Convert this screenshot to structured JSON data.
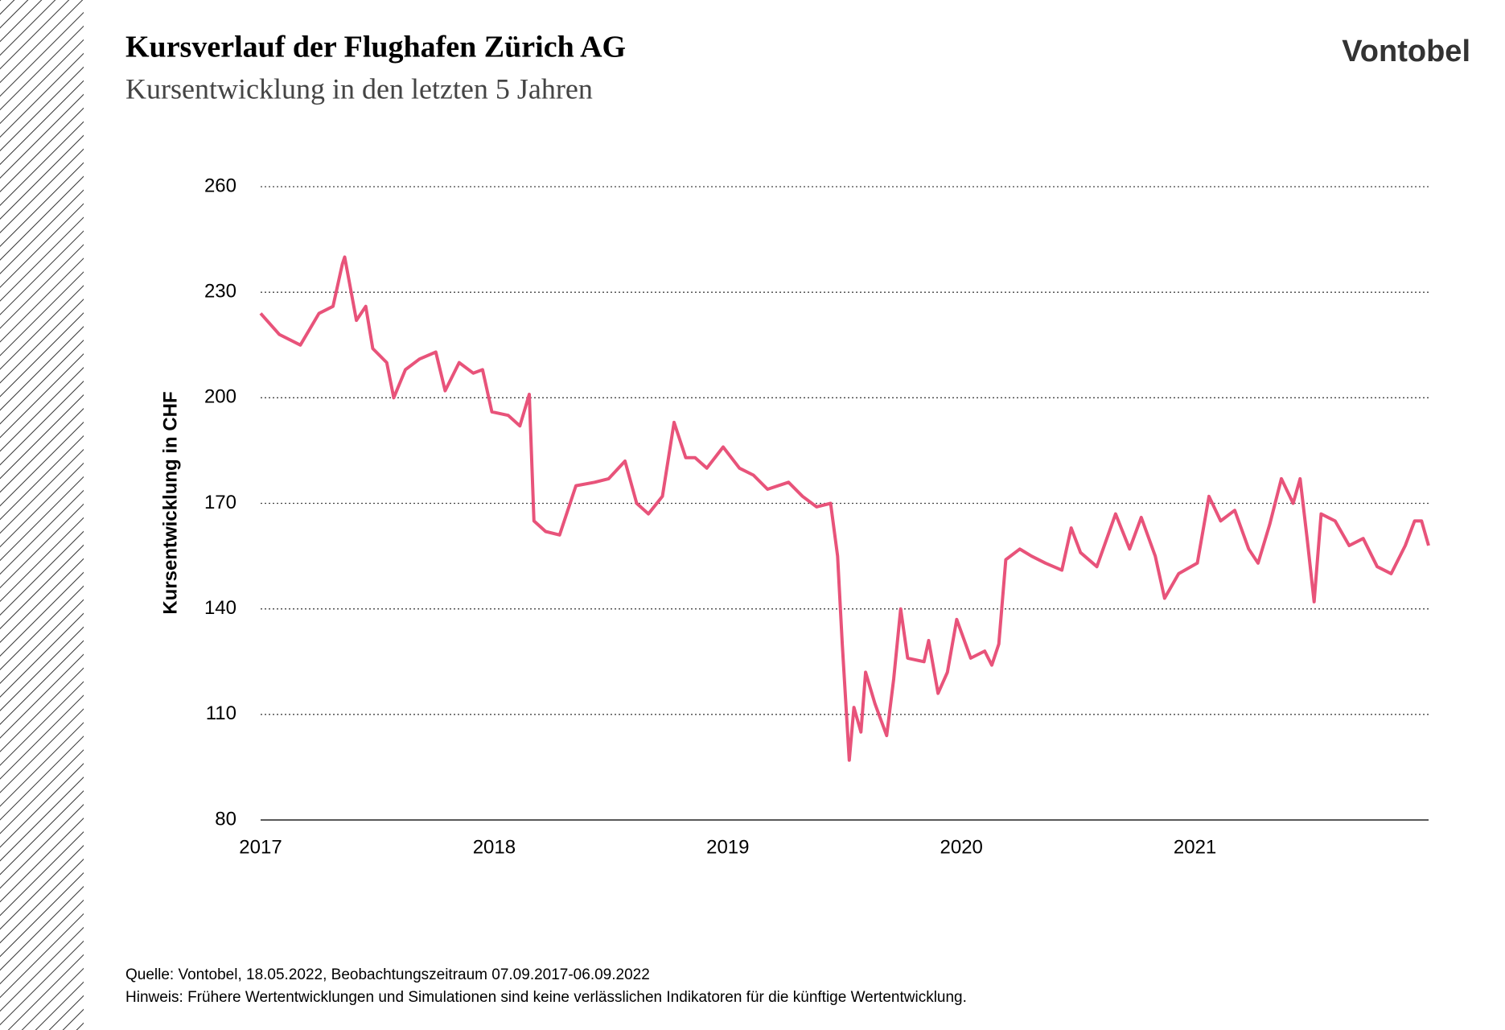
{
  "chart_data": {
    "type": "line",
    "title": "Kursverlauf der Flughafen Zürich AG",
    "subtitle": "Kursentwicklung in den letzten 5 Jahren",
    "brand": "Vontobel",
    "y_label": "Kursentwicklung in CHF",
    "notes": [
      "Quelle: Vontobel, 18.05.2022, Beobachtungszeitraum 07.09.2017-06.09.2022",
      "Hinweis: Frühere Wertentwicklungen und Simulationen sind keine verlässlichen Indikatoren für die künftige Wertentwicklung."
    ],
    "xlim": [
      2017,
      2022
    ],
    "xticks": [
      2017,
      2018,
      2019,
      2020,
      2021
    ],
    "ylim": [
      80,
      260
    ],
    "yticks": [
      80,
      110,
      140,
      170,
      200,
      230,
      260
    ],
    "grid": true,
    "x": [
      2017.0,
      2017.08,
      2017.17,
      2017.25,
      2017.31,
      2017.35,
      2017.36,
      2017.41,
      2017.45,
      2017.48,
      2017.54,
      2017.57,
      2017.62,
      2017.68,
      2017.75,
      2017.79,
      2017.85,
      2017.91,
      2017.95,
      2017.99,
      2018.06,
      2018.11,
      2018.15,
      2018.17,
      2018.22,
      2018.28,
      2018.35,
      2018.43,
      2018.49,
      2018.56,
      2018.61,
      2018.66,
      2018.72,
      2018.77,
      2018.82,
      2018.86,
      2018.91,
      2018.98,
      2019.05,
      2019.11,
      2019.17,
      2019.26,
      2019.32,
      2019.38,
      2019.44,
      2019.47,
      2019.49,
      2019.52,
      2019.54,
      2019.57,
      2019.59,
      2019.63,
      2019.68,
      2019.71,
      2019.74,
      2019.77,
      2019.84,
      2019.86,
      2019.9,
      2019.94,
      2019.98,
      2020.04,
      2020.1,
      2020.13,
      2020.16,
      2020.19,
      2020.25,
      2020.3,
      2020.36,
      2020.43,
      2020.47,
      2020.51,
      2020.58,
      2020.66,
      2020.72,
      2020.77,
      2020.83,
      2020.87,
      2020.93,
      2021.01,
      2021.06,
      2021.11,
      2021.17,
      2021.23,
      2021.27,
      2021.32,
      2021.37,
      2021.42,
      2021.45,
      2021.48,
      2021.51,
      2021.54,
      2021.6,
      2021.66,
      2021.72,
      2021.78,
      2021.84,
      2021.9,
      2021.94,
      2021.97,
      2022.0
    ],
    "series": [
      {
        "name": "Flughafen Zürich AG",
        "color": "#e8537a",
        "values": [
          224,
          218,
          215,
          224,
          226,
          238,
          240,
          222,
          226,
          214,
          210,
          200,
          208,
          211,
          213,
          202,
          210,
          207,
          208,
          196,
          195,
          192,
          201,
          165,
          162,
          161,
          175,
          176,
          177,
          182,
          170,
          167,
          172,
          193,
          183,
          183,
          180,
          186,
          180,
          178,
          174,
          176,
          172,
          169,
          170,
          155,
          130,
          97,
          112,
          105,
          122,
          113,
          104,
          120,
          140,
          126,
          125,
          131,
          116,
          122,
          137,
          126,
          128,
          124,
          130,
          154,
          157,
          155,
          153,
          151,
          163,
          156,
          152,
          167,
          157,
          166,
          155,
          143,
          150,
          153,
          172,
          165,
          168,
          157,
          153,
          164,
          177,
          170,
          177,
          160,
          142,
          167,
          165,
          158,
          160,
          152,
          150,
          158,
          165,
          165,
          158
        ]
      }
    ]
  }
}
